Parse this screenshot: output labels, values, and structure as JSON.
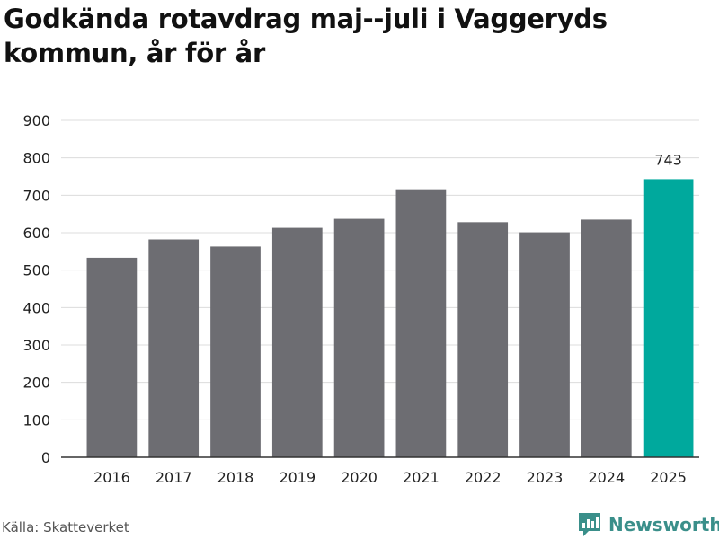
{
  "chart_data": {
    "type": "bar",
    "title": "Godkända rotavdrag maj--juli i Vaggeryds kommun, år för år",
    "categories": [
      "2016",
      "2017",
      "2018",
      "2019",
      "2020",
      "2021",
      "2022",
      "2023",
      "2024",
      "2025"
    ],
    "values": [
      533,
      582,
      563,
      613,
      637,
      716,
      628,
      601,
      635,
      743
    ],
    "highlight": {
      "category": "2025",
      "label": "743"
    },
    "ylim": [
      0,
      900
    ],
    "yticks": [
      0,
      100,
      200,
      300,
      400,
      500,
      600,
      700,
      800,
      900
    ],
    "grid": true,
    "xlabel": "",
    "ylabel": ""
  },
  "colors": {
    "bar": "#6d6d72",
    "highlight": "#00a99d",
    "grid": "#dcdcdc",
    "axis": "#333333"
  },
  "source": "Källa: Skatteverket",
  "brand": {
    "name": "Newsworthy",
    "icon": "newsworthy-logo-icon"
  }
}
